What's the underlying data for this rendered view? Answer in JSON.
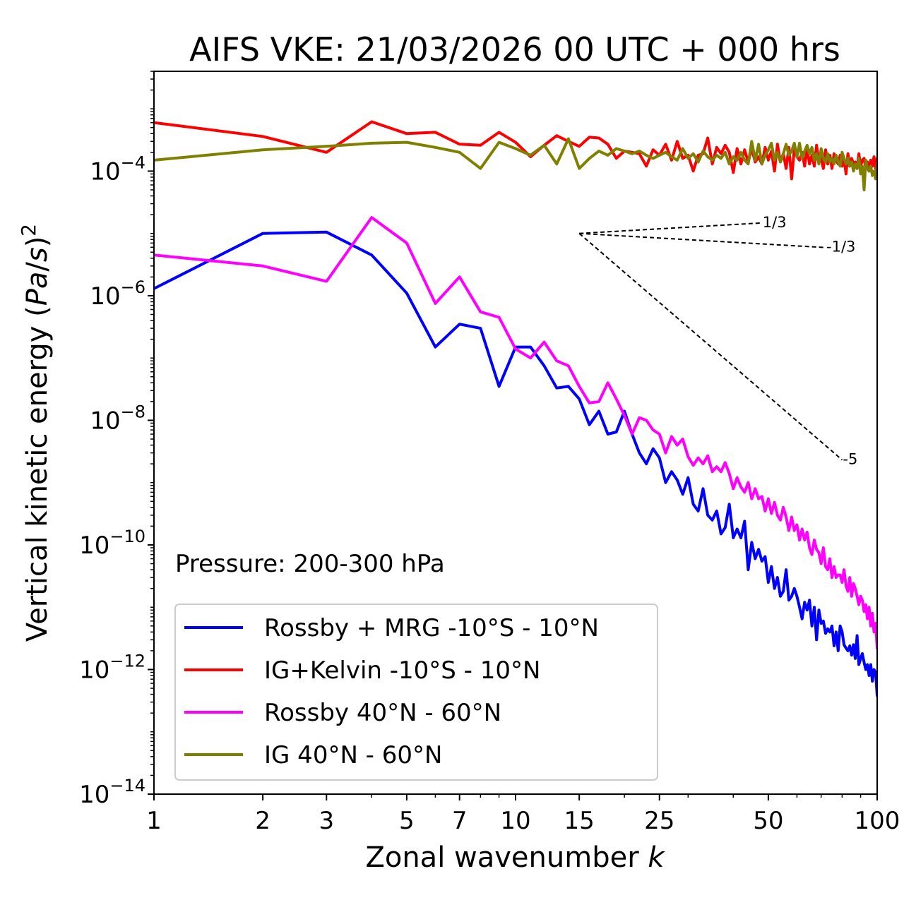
{
  "chart_data": {
    "type": "line",
    "title": "AIFS VKE: 21/03/2026 00 UTC + 000 hrs",
    "xlabel": "Zonal wavenumber k",
    "ylabel": "Vertical kinetic energy (Pa/s)²",
    "xscale": "log",
    "yscale": "log",
    "xlim": [
      1,
      100
    ],
    "ylim": [
      1e-14,
      0.004
    ],
    "x_ticks": [
      1,
      2,
      3,
      5,
      7,
      10,
      15,
      25,
      50,
      100
    ],
    "x_tick_labels": [
      "1",
      "2",
      "3",
      "5",
      "7",
      "10",
      "15",
      "25",
      "50",
      "100"
    ],
    "y_ticks": [
      0.0001,
      1e-06,
      1e-08,
      1e-10,
      1e-12,
      1e-14
    ],
    "y_tick_labels": [
      {
        "base": "10",
        "exp": "−4"
      },
      {
        "base": "10",
        "exp": "−6"
      },
      {
        "base": "10",
        "exp": "−8"
      },
      {
        "base": "10",
        "exp": "−10"
      },
      {
        "base": "10",
        "exp": "−12"
      },
      {
        "base": "10",
        "exp": "−14"
      }
    ],
    "annotation": "Pressure: 200-300 hPa",
    "legend_position": "lower-left",
    "series": [
      {
        "name": "Rossby + MRG -10°S - 10°N",
        "color": "#0000ff",
        "x": [
          1,
          2,
          3,
          4,
          5,
          6,
          7,
          8,
          9,
          10,
          11,
          12,
          13,
          14,
          15,
          16,
          17,
          18,
          19,
          20,
          21,
          22,
          23,
          24,
          25,
          26,
          27,
          28,
          29,
          30,
          31,
          32,
          33,
          34,
          35,
          36,
          37,
          38,
          39,
          40,
          41,
          42,
          43,
          44,
          45,
          46,
          47,
          48,
          49,
          50,
          51,
          52,
          53,
          54,
          55,
          56,
          57,
          58,
          59,
          60,
          61,
          62,
          63,
          64,
          65,
          66,
          67,
          68,
          69,
          70,
          71,
          72,
          73,
          74,
          75,
          76,
          77,
          78,
          79,
          80,
          81,
          82,
          83,
          84,
          85,
          86,
          87,
          88,
          89,
          90,
          91,
          92,
          93,
          94,
          95,
          96,
          97,
          98,
          99,
          100
        ],
        "y": [
          1.3e-06,
          1e-05,
          1.05e-05,
          4.5e-06,
          1.1e-06,
          1.5e-07,
          3.5e-07,
          3e-07,
          3.5e-08,
          1.5e-07,
          1.5e-07,
          7.5e-08,
          3.3e-08,
          3.5e-08,
          2.2e-08,
          8.5e-09,
          1.4e-08,
          6e-09,
          6.5e-09,
          1.4e-08,
          6e-09,
          3e-09,
          2e-09,
          3.5e-09,
          2.5e-09,
          1e-09,
          1.5e-09,
          1.1e-09,
          6.5e-10,
          1.2e-09,
          4.5e-10,
          3.5e-10,
          8e-10,
          3e-10,
          2.5e-10,
          3.5e-10,
          1.5e-10,
          1.9e-10,
          4.5e-10,
          1.3e-10,
          1.8e-10,
          1.3e-10,
          2.4e-10,
          4e-11,
          1.1e-10,
          6e-11,
          8.5e-11,
          5.5e-11,
          6.5e-11,
          2.5e-11,
          4.5e-11,
          2e-11,
          3e-11,
          1.5e-11,
          1.8e-11,
          4e-11,
          1.3e-11,
          1.5e-11,
          2e-11,
          1.5e-11,
          1e-11,
          6.5e-12,
          1.2e-11,
          9e-12,
          1.3e-11,
          5e-12,
          1e-11,
          3e-12,
          9e-12,
          5.5e-12,
          6e-12,
          3.8e-12,
          4.5e-12,
          4e-12,
          5e-12,
          2.4e-12,
          4e-12,
          2e-12,
          5e-12,
          4e-12,
          2.5e-12,
          2.2e-12,
          2e-12,
          2.4e-12,
          1.7e-12,
          2.5e-12,
          1.5e-12,
          3.5e-12,
          1.2e-12,
          1.5e-12,
          1.8e-12,
          1.3e-12,
          1e-12,
          1.2e-12,
          8e-13,
          1.2e-12,
          6.5e-13,
          1e-12,
          9e-13,
          3.8e-13
        ]
      },
      {
        "name": "IG+Kelvin -10°S - 10°N",
        "color": "#ff0000",
        "x": [
          1,
          2,
          3,
          4,
          5,
          6,
          7,
          8,
          9,
          10,
          11,
          12,
          13,
          14,
          15,
          16,
          17,
          18,
          19,
          20,
          21,
          22,
          23,
          24,
          25,
          26,
          27,
          28,
          29,
          30,
          31,
          32,
          33,
          34,
          35,
          36,
          37,
          38,
          39,
          40,
          41,
          42,
          43,
          44,
          45,
          46,
          47,
          48,
          49,
          50,
          51,
          52,
          53,
          54,
          55,
          56,
          57,
          58,
          59,
          60,
          61,
          62,
          63,
          64,
          65,
          66,
          67,
          68,
          69,
          70,
          71,
          72,
          73,
          74,
          75,
          76,
          77,
          78,
          79,
          80,
          81,
          82,
          83,
          84,
          85,
          86,
          87,
          88,
          89,
          90,
          91,
          92,
          93,
          94,
          95,
          96,
          97,
          98,
          99,
          100
        ],
        "y": [
          0.0006,
          0.00036,
          0.0002,
          0.00062,
          0.0004,
          0.00042,
          0.00027,
          0.00026,
          0.00042,
          0.00029,
          0.00017,
          0.00026,
          0.00037,
          0.0003,
          0.00025,
          0.00035,
          0.00034,
          0.00027,
          0.00016,
          0.00021,
          0.0002,
          0.00019,
          0.00012,
          0.00022,
          0.00018,
          0.00027,
          0.00015,
          0.0003,
          0.00016,
          0.00018,
          0.0001,
          0.00018,
          0.00019,
          0.00034,
          0.00013,
          0.00024,
          0.00019,
          0.00026,
          0.0002,
          9.5e-05,
          0.00023,
          0.00013,
          0.00022,
          0.00014,
          0.00023,
          0.00014,
          0.00017,
          0.00013,
          0.00024,
          0.00015,
          0.00021,
          0.0001,
          0.00027,
          0.00014,
          0.00019,
          0.00011,
          0.00024,
          7.5e-05,
          0.00023,
          0.00017,
          0.00015,
          0.0002,
          0.00012,
          0.00023,
          0.00013,
          0.00018,
          0.00012,
          0.00026,
          0.00014,
          0.00016,
          0.00011,
          0.00022,
          0.00013,
          0.00018,
          0.00011,
          0.00019,
          0.00015,
          0.00013,
          0.00018,
          0.00012,
          0.00016,
          9e-05,
          0.00019,
          0.00012,
          0.00016,
          0.00013,
          0.00014,
          0.00011,
          0.00019,
          0.00012,
          0.00015,
          0.00016,
          0.00011,
          0.00014,
          0.0001,
          0.00015,
          0.00012,
          0.00017,
          0.00011,
          0.00016
        ]
      },
      {
        "name": "Rossby 40°N - 60°N",
        "color": "#ff00ff",
        "x": [
          1,
          2,
          3,
          4,
          5,
          6,
          7,
          8,
          9,
          10,
          11,
          12,
          13,
          14,
          15,
          16,
          17,
          18,
          19,
          20,
          21,
          22,
          23,
          24,
          25,
          26,
          27,
          28,
          29,
          30,
          31,
          32,
          33,
          34,
          35,
          36,
          37,
          38,
          39,
          40,
          41,
          42,
          43,
          44,
          45,
          46,
          47,
          48,
          49,
          50,
          51,
          52,
          53,
          54,
          55,
          56,
          57,
          58,
          59,
          60,
          61,
          62,
          63,
          64,
          65,
          66,
          67,
          68,
          69,
          70,
          71,
          72,
          73,
          74,
          75,
          76,
          77,
          78,
          79,
          80,
          81,
          82,
          83,
          84,
          85,
          86,
          87,
          88,
          89,
          90,
          91,
          92,
          93,
          94,
          95,
          96,
          97,
          98,
          99,
          100
        ],
        "y": [
          4.5e-06,
          3e-06,
          1.7e-06,
          1.8e-05,
          7e-06,
          7.5e-07,
          2e-06,
          5.5e-07,
          4.5e-07,
          1.4e-07,
          1e-07,
          1.8e-07,
          9e-08,
          7.5e-08,
          3.5e-08,
          1.9e-08,
          2e-08,
          4e-08,
          2.2e-08,
          1.2e-08,
          6e-09,
          1.1e-08,
          1e-08,
          7e-09,
          6e-09,
          3e-09,
          5.5e-09,
          4e-09,
          5e-09,
          2.6e-09,
          1.9e-09,
          2.5e-09,
          2e-09,
          2.7e-09,
          1.5e-09,
          1.8e-09,
          1.5e-09,
          2.1e-09,
          1.4e-09,
          8e-10,
          1.2e-09,
          8.5e-10,
          7e-10,
          1e-09,
          5.5e-10,
          8e-10,
          5.5e-10,
          6e-10,
          3.5e-10,
          5.5e-10,
          3.2e-10,
          4.8e-10,
          3e-10,
          2.5e-10,
          4e-10,
          2.8e-10,
          1.7e-10,
          2.8e-10,
          1.7e-10,
          2.1e-10,
          1.2e-10,
          1.8e-10,
          1.2e-10,
          1.6e-10,
          9e-11,
          7e-11,
          1.2e-10,
          8.5e-11,
          7.5e-11,
          5e-11,
          9e-11,
          4.5e-11,
          4e-11,
          6e-11,
          3e-11,
          4.5e-11,
          3e-11,
          3.3e-11,
          3.3e-11,
          2.5e-11,
          4e-11,
          2.2e-11,
          1.8e-11,
          3e-11,
          1.5e-11,
          2.4e-11,
          2e-11,
          1.5e-11,
          1.1e-11,
          1.5e-11,
          1.3e-11,
          8.5e-12,
          1.1e-11,
          6.5e-12,
          1e-11,
          5e-12,
          8e-12,
          4e-12,
          5.5e-12,
          2.2e-12
        ]
      },
      {
        "name": "IG 40°N - 60°N",
        "color": "#808000",
        "x": [
          1,
          2,
          3,
          4,
          5,
          6,
          7,
          8,
          9,
          10,
          11,
          12,
          13,
          14,
          15,
          16,
          17,
          18,
          19,
          20,
          21,
          22,
          23,
          24,
          25,
          26,
          27,
          28,
          29,
          30,
          31,
          32,
          33,
          34,
          35,
          36,
          37,
          38,
          39,
          40,
          41,
          42,
          43,
          44,
          45,
          46,
          47,
          48,
          49,
          50,
          51,
          52,
          53,
          54,
          55,
          56,
          57,
          58,
          59,
          60,
          61,
          62,
          63,
          64,
          65,
          66,
          67,
          68,
          69,
          70,
          71,
          72,
          73,
          74,
          75,
          76,
          77,
          78,
          79,
          80,
          81,
          82,
          83,
          84,
          85,
          86,
          87,
          88,
          89,
          90,
          91,
          92,
          93,
          94,
          95,
          96,
          97,
          98,
          99,
          100
        ],
        "y": [
          0.00015,
          0.00022,
          0.00025,
          0.00028,
          0.00029,
          0.00024,
          0.0002,
          0.00011,
          0.00029,
          0.00023,
          0.00018,
          0.00026,
          0.00013,
          0.00033,
          0.00011,
          0.00016,
          0.00021,
          0.00018,
          0.00023,
          0.00021,
          0.00019,
          0.00021,
          0.00018,
          0.00016,
          0.00018,
          0.0002,
          0.00017,
          0.00015,
          0.00023,
          0.00016,
          0.00019,
          0.00014,
          0.00021,
          0.00017,
          0.00015,
          0.00018,
          0.00016,
          0.0002,
          0.00013,
          0.00017,
          0.00015,
          0.0002,
          0.00015,
          0.00013,
          0.0003,
          0.00015,
          0.00027,
          0.00013,
          0.00018,
          0.00022,
          0.00028,
          0.00015,
          0.0002,
          0.00014,
          0.00019,
          0.00027,
          0.00018,
          0.00021,
          0.00028,
          0.00017,
          0.00028,
          0.00016,
          0.00021,
          0.00026,
          0.00019,
          0.00024,
          0.00015,
          0.00019,
          0.00013,
          0.00023,
          0.00016,
          0.00014,
          0.00019,
          0.00014,
          0.00016,
          0.00013,
          0.00018,
          0.00014,
          0.00012,
          0.0002,
          0.00016,
          0.00013,
          0.00016,
          0.00012,
          0.00014,
          0.0001,
          0.00013,
          0.00011,
          0.00016,
          9e-05,
          0.00012,
          5e-05,
          0.00015,
          0.00011,
          0.0001,
          0.00012,
          8.5e-05,
          0.0001,
          7.5e-05,
          0.00013
        ]
      }
    ],
    "reference_lines": [
      {
        "label": "1/3",
        "slope": 0.333,
        "x0": 15,
        "y0": 1e-05,
        "x1": 48
      },
      {
        "label": "-1/3",
        "slope": -0.333,
        "x0": 15,
        "y0": 1e-05,
        "x1": 72
      },
      {
        "label": "-5",
        "slope": -5,
        "x0": 15,
        "y0": 1e-05,
        "x1": 80
      }
    ]
  }
}
